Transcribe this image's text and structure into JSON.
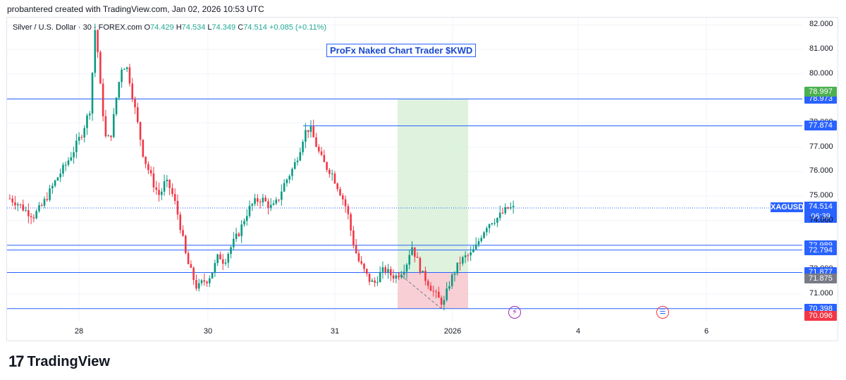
{
  "header": {
    "credit": "probantered created with TradingView.com, Jan 02, 2026 10:53 UTC"
  },
  "legend": {
    "symbol": "Silver / U.S. Dollar · 30 · FOREX.com",
    "o_label": "O",
    "o_value": "74.429",
    "h_label": "H",
    "h_value": "74.534",
    "l_label": "L",
    "l_value": "74.349",
    "c_label": "C",
    "c_value": "74.514",
    "change": "+0.085 (+0.11%)"
  },
  "annotation": {
    "text": "ProFx Naked Chart Trader $KWD"
  },
  "footer": {
    "brand": "TradingView",
    "brand_mark": "17"
  },
  "symbol_tag": "XAGUSD",
  "current_price": {
    "price": "74.514",
    "countdown": "06:39"
  },
  "colors": {
    "up": "#089981",
    "down": "#f23645",
    "line": "#2962ff",
    "profit_zone": "#d8f0d8",
    "loss_zone": "#f6c7cc",
    "grid": "#f0f3fa",
    "tag_blue": "#2962ff",
    "tag_green": "#4caf50",
    "tag_red": "#f23645",
    "tag_gray": "#787b86"
  },
  "chart_data": {
    "type": "candlestick",
    "title": "Silver / U.S. Dollar · 30 · FOREX.com",
    "ylim": [
      69.9,
      82.3
    ],
    "y_ticks": [
      "82.000",
      "81.000",
      "80.000",
      "79.000",
      "78.000",
      "77.000",
      "76.000",
      "75.000",
      "74.000",
      "73.000",
      "72.000",
      "71.000"
    ],
    "x_ticks": [
      "28",
      "30",
      "31",
      "2026",
      "4",
      "6"
    ],
    "current_price": 74.514,
    "horizontal_levels": [
      {
        "value": 78.973,
        "label": "78.973",
        "color": "#2962ff"
      },
      {
        "value": 77.874,
        "label": "77.874",
        "color": "#2962ff"
      },
      {
        "value": 72.989,
        "label": "72.989",
        "color": "#2962ff"
      },
      {
        "value": 72.794,
        "label": "72.794",
        "color": "#2962ff"
      },
      {
        "value": 71.877,
        "label": "71.877",
        "color": "#2962ff"
      },
      {
        "value": 70.398,
        "label": "70.398",
        "color": "#2962ff"
      }
    ],
    "tags": [
      {
        "value": 78.997,
        "label": "78.997",
        "color": "#4caf50"
      },
      {
        "value": 71.875,
        "label": "71.875",
        "color": "#787b86"
      },
      {
        "value": 70.096,
        "label": "70.096",
        "color": "#f23645"
      }
    ],
    "position": {
      "entry": 71.877,
      "target": 78.973,
      "stop": 70.398,
      "type": "long"
    },
    "price_path": [
      [
        0,
        74.9
      ],
      [
        3,
        74.7
      ],
      [
        6,
        74.4
      ],
      [
        9,
        74.2
      ],
      [
        12,
        74.6
      ],
      [
        15,
        75.2
      ],
      [
        18,
        75.8
      ],
      [
        21,
        76.3
      ],
      [
        24,
        76.9
      ],
      [
        27,
        77.6
      ],
      [
        30,
        78.6
      ],
      [
        32,
        82.1
      ],
      [
        34,
        79.2
      ],
      [
        36,
        77.2
      ],
      [
        38,
        77.6
      ],
      [
        40,
        79.2
      ],
      [
        42,
        80.4
      ],
      [
        44,
        80.2
      ],
      [
        46,
        79.0
      ],
      [
        48,
        77.8
      ],
      [
        50,
        76.6
      ],
      [
        52,
        76.0
      ],
      [
        54,
        75.4
      ],
      [
        56,
        75.0
      ],
      [
        58,
        75.6
      ],
      [
        60,
        75.3
      ],
      [
        62,
        74.6
      ],
      [
        64,
        73.6
      ],
      [
        66,
        72.4
      ],
      [
        68,
        71.8
      ],
      [
        70,
        71.2
      ],
      [
        72,
        71.5
      ],
      [
        74,
        71.6
      ],
      [
        76,
        72.0
      ],
      [
        78,
        72.6
      ],
      [
        80,
        72.3
      ],
      [
        82,
        72.8
      ],
      [
        84,
        73.2
      ],
      [
        86,
        73.6
      ],
      [
        88,
        74.2
      ],
      [
        90,
        74.6
      ],
      [
        92,
        74.8
      ],
      [
        94,
        74.9
      ],
      [
        96,
        74.7
      ],
      [
        98,
        74.5
      ],
      [
        100,
        74.8
      ],
      [
        102,
        75.4
      ],
      [
        104,
        75.8
      ],
      [
        106,
        76.2
      ],
      [
        108,
        76.8
      ],
      [
        110,
        77.6
      ],
      [
        112,
        77.8
      ],
      [
        114,
        77.2
      ],
      [
        116,
        76.6
      ],
      [
        118,
        76.2
      ],
      [
        120,
        76.0
      ],
      [
        122,
        75.5
      ],
      [
        124,
        75.0
      ],
      [
        126,
        74.4
      ],
      [
        128,
        73.2
      ],
      [
        130,
        72.4
      ],
      [
        132,
        72.0
      ],
      [
        134,
        71.6
      ],
      [
        136,
        71.4
      ],
      [
        138,
        71.8
      ],
      [
        140,
        72.0
      ],
      [
        142,
        71.8
      ],
      [
        144,
        71.7
      ],
      [
        146,
        71.9
      ],
      [
        148,
        72.2
      ],
      [
        150,
        73.0
      ],
      [
        152,
        72.4
      ],
      [
        154,
        71.8
      ],
      [
        156,
        71.5
      ],
      [
        158,
        71.1
      ],
      [
        160,
        70.8
      ],
      [
        162,
        70.6
      ],
      [
        164,
        71.4
      ],
      [
        166,
        71.9
      ],
      [
        168,
        72.3
      ],
      [
        170,
        72.5
      ],
      [
        172,
        72.6
      ],
      [
        174,
        72.9
      ],
      [
        176,
        73.4
      ],
      [
        178,
        73.8
      ],
      [
        180,
        74.0
      ],
      [
        182,
        74.1
      ],
      [
        184,
        74.3
      ],
      [
        186,
        74.5
      ],
      [
        188,
        74.5
      ]
    ]
  }
}
